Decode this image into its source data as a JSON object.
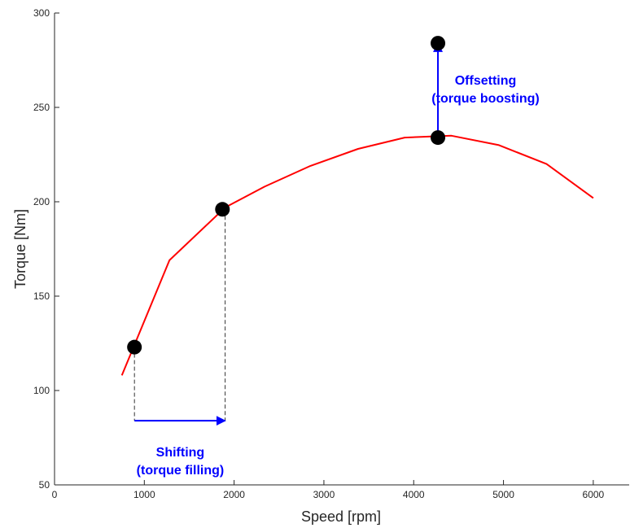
{
  "chart_data": {
    "type": "line",
    "title": "",
    "xlabel": "Speed [rpm]",
    "ylabel": "Torque [Nm]",
    "xlim": [
      0,
      6400
    ],
    "ylim": [
      50,
      300
    ],
    "xticks": [
      0,
      1000,
      2000,
      3000,
      4000,
      5000,
      6000
    ],
    "yticks": [
      50,
      100,
      150,
      200,
      250,
      300
    ],
    "grid": false,
    "series": [
      {
        "color": "#ff0000",
        "x": [
          750,
          1280,
          1900,
          2340,
          2850,
          3380,
          3900,
          4420,
          4950,
          5480,
          6000
        ],
        "y": [
          108,
          169,
          197,
          208,
          219,
          228,
          234,
          235,
          230,
          220,
          202
        ]
      }
    ],
    "points": [
      {
        "x": 890,
        "y": 123
      },
      {
        "x": 1870,
        "y": 196
      },
      {
        "x": 4270,
        "y": 234
      },
      {
        "x": 4270,
        "y": 284
      }
    ],
    "dashed_drops": [
      {
        "x": 890,
        "y_from": 123,
        "y_to": 84
      },
      {
        "x": 1900,
        "y_from": 196,
        "y_to": 84
      }
    ],
    "arrows": [
      {
        "from": [
          890,
          84
        ],
        "to": [
          1900,
          84
        ],
        "color": "#0000ff"
      },
      {
        "from": [
          4270,
          234
        ],
        "to": [
          4270,
          284
        ],
        "color": "#0000ff"
      }
    ],
    "annotations": [
      {
        "lines": [
          "Shifting",
          "(torque filling)"
        ],
        "x": 1400,
        "y": 65,
        "color": "#0000ff"
      },
      {
        "lines": [
          "Offsetting",
          "(torque boosting)"
        ],
        "x": 4800,
        "y": 262,
        "color": "#0000ff"
      }
    ]
  }
}
